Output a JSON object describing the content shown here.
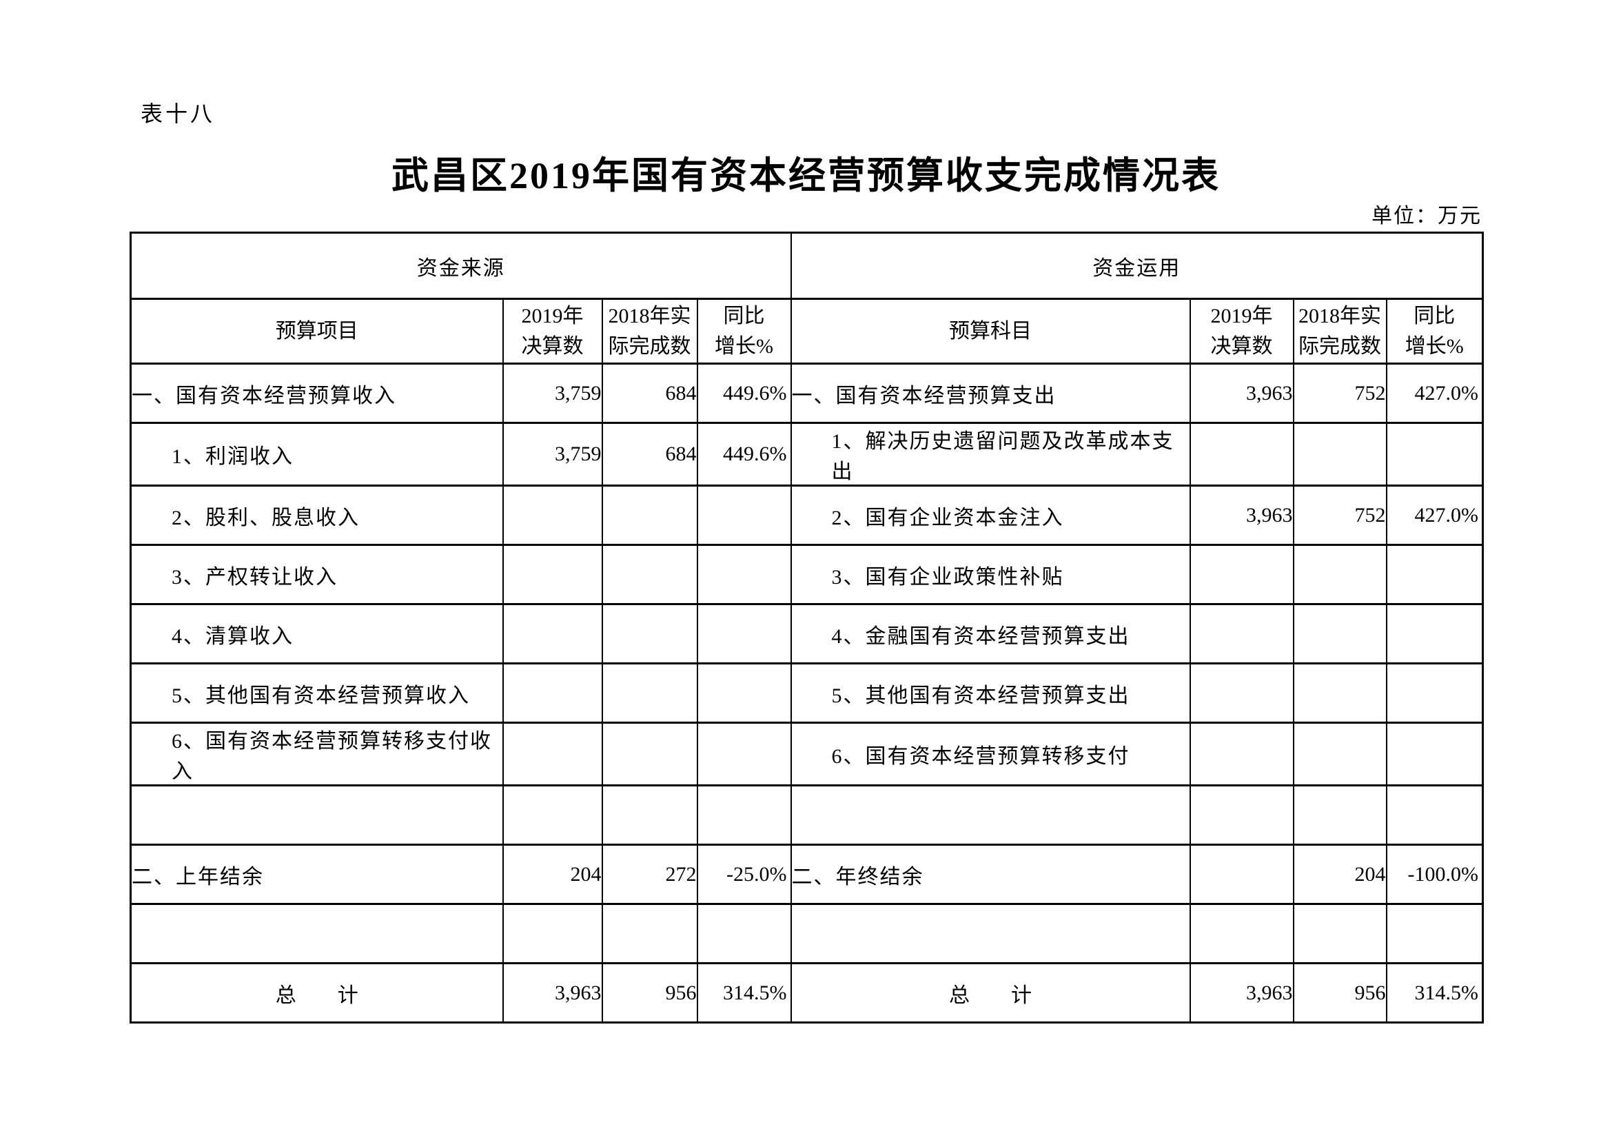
{
  "page": {
    "table_label": "表十八",
    "title": "武昌区2019年国有资本经营预算收支完成情况表",
    "unit_note": "单位：万元",
    "colors": {
      "text": "#000000",
      "background": "#ffffff"
    }
  },
  "table": {
    "groups": {
      "left": "资金来源",
      "right": "资金运用"
    },
    "headers": {
      "left": [
        "预算项目",
        "2019年\n决算数",
        "2018年实\n际完成数",
        "同比\n增长%"
      ],
      "right": [
        "预算科目",
        "2019年\n决算数",
        "2018年实\n际完成数",
        "同比\n增长%"
      ]
    },
    "rows": [
      {
        "left": {
          "label": "一、国有资本经营预算收入",
          "v2019": "3,759",
          "v2018": "684",
          "yoy": "449.6%",
          "bold": true
        },
        "right": {
          "label": "一、国有资本经营预算支出",
          "v2019": "3,963",
          "v2018": "752",
          "yoy": "427.0%",
          "bold": true
        }
      },
      {
        "left": {
          "label": "1、利润收入",
          "v2019": "3,759",
          "v2018": "684",
          "yoy": "449.6%",
          "indent": true
        },
        "right": {
          "label": "1、解决历史遗留问题及改革成本支出",
          "v2019": "",
          "v2018": "",
          "yoy": "",
          "indent": true
        }
      },
      {
        "left": {
          "label": "2、股利、股息收入",
          "v2019": "",
          "v2018": "",
          "yoy": "",
          "indent": true
        },
        "right": {
          "label": "2、国有企业资本金注入",
          "v2019": "3,963",
          "v2018": "752",
          "yoy": "427.0%",
          "indent": true
        }
      },
      {
        "left": {
          "label": "3、产权转让收入",
          "v2019": "",
          "v2018": "",
          "yoy": "",
          "indent": true
        },
        "right": {
          "label": "3、国有企业政策性补贴",
          "v2019": "",
          "v2018": "",
          "yoy": "",
          "indent": true
        }
      },
      {
        "left": {
          "label": "4、清算收入",
          "v2019": "",
          "v2018": "",
          "yoy": "",
          "indent": true
        },
        "right": {
          "label": "4、金融国有资本经营预算支出",
          "v2019": "",
          "v2018": "",
          "yoy": "",
          "indent": true
        }
      },
      {
        "left": {
          "label": "5、其他国有资本经营预算收入",
          "v2019": "",
          "v2018": "",
          "yoy": "",
          "indent": true
        },
        "right": {
          "label": "5、其他国有资本经营预算支出",
          "v2019": "",
          "v2018": "",
          "yoy": "",
          "indent": true
        }
      },
      {
        "left": {
          "label": "6、国有资本经营预算转移支付收入",
          "v2019": "",
          "v2018": "",
          "yoy": "",
          "indent": true
        },
        "right": {
          "label": "6、国有资本经营预算转移支付",
          "v2019": "",
          "v2018": "",
          "yoy": "",
          "indent": true
        }
      },
      {
        "left": {
          "label": "",
          "v2019": "",
          "v2018": "",
          "yoy": ""
        },
        "right": {
          "label": "",
          "v2019": "",
          "v2018": "",
          "yoy": ""
        }
      },
      {
        "left": {
          "label": "二、上年结余",
          "v2019": "204",
          "v2018": "272",
          "yoy": "-25.0%",
          "bold": true
        },
        "right": {
          "label": "二、年终结余",
          "v2019": "",
          "v2018": "204",
          "yoy": "-100.0%",
          "bold": true
        }
      },
      {
        "left": {
          "label": "",
          "v2019": "",
          "v2018": "",
          "yoy": ""
        },
        "right": {
          "label": "",
          "v2019": "",
          "v2018": "",
          "yoy": ""
        }
      },
      {
        "left": {
          "label": "总　　计",
          "v2019": "3,963",
          "v2018": "956",
          "yoy": "314.5%",
          "bold": true,
          "center": true,
          "bold_values": true
        },
        "right": {
          "label": "总　　计",
          "v2019": "3,963",
          "v2018": "956",
          "yoy": "314.5%",
          "bold": true,
          "center": true,
          "bold_values": true
        }
      }
    ]
  }
}
